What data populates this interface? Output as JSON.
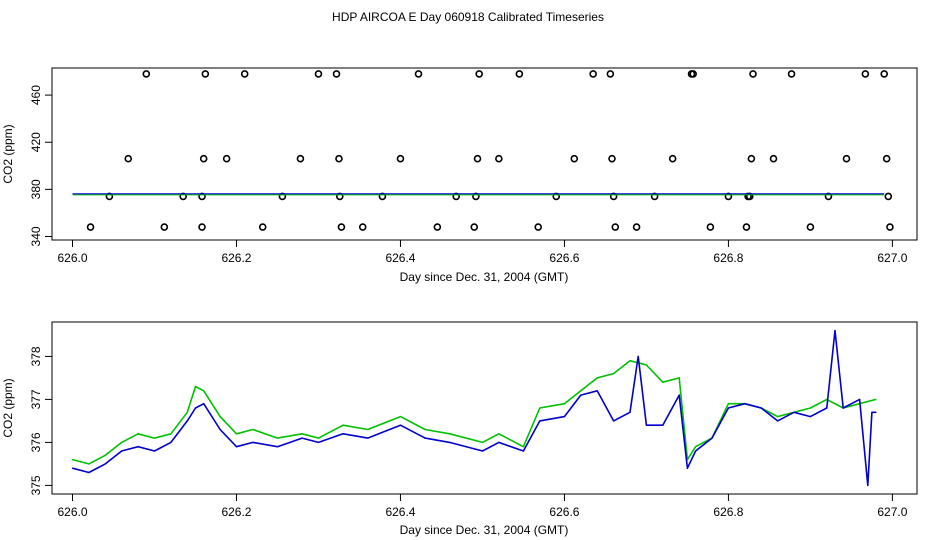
{
  "title": "HDP AIRCOA E  Day 060918  Calibrated Timeseries",
  "chart_data": [
    {
      "type": "scatter",
      "panel": "top",
      "xlabel": "Day since Dec. 31, 2004 (GMT)",
      "ylabel": "CO2 (ppm)",
      "xlim": [
        625.975,
        627.03
      ],
      "ylim": [
        337,
        483
      ],
      "x_ticks": [
        "626.0",
        "626.2",
        "626.4",
        "626.6",
        "626.8",
        "627.0"
      ],
      "y_ticks": [
        "340",
        "380",
        "420",
        "460"
      ],
      "colors": {
        "series_a": "#00c000",
        "series_b": "#0000cc",
        "outliers": "#000000"
      },
      "series": [
        {
          "color": "#000000",
          "marker": "open-circle",
          "points": [
            [
              626.022,
              348
            ],
            [
              626.045,
              374
            ],
            [
              626.068,
              406
            ],
            [
              626.09,
              478
            ],
            [
              626.112,
              348
            ],
            [
              626.135,
              374
            ],
            [
              626.158,
              374
            ],
            [
              626.16,
              406
            ],
            [
              626.162,
              478
            ],
            [
              626.158,
              348
            ],
            [
              626.188,
              406
            ],
            [
              626.21,
              478
            ],
            [
              626.232,
              348
            ],
            [
              626.256,
              374
            ],
            [
              626.278,
              406
            ],
            [
              626.3,
              478
            ],
            [
              626.322,
              478
            ],
            [
              626.325,
              406
            ],
            [
              626.326,
              374
            ],
            [
              626.328,
              348
            ],
            [
              626.354,
              348
            ],
            [
              626.378,
              374
            ],
            [
              626.4,
              406
            ],
            [
              626.422,
              478
            ],
            [
              626.445,
              348
            ],
            [
              626.468,
              374
            ],
            [
              626.49,
              348
            ],
            [
              626.492,
              374
            ],
            [
              626.494,
              406
            ],
            [
              626.496,
              478
            ],
            [
              626.52,
              406
            ],
            [
              626.545,
              478
            ],
            [
              626.568,
              348
            ],
            [
              626.59,
              374
            ],
            [
              626.612,
              406
            ],
            [
              626.635,
              478
            ],
            [
              626.656,
              478
            ],
            [
              626.658,
              406
            ],
            [
              626.66,
              374
            ],
            [
              626.662,
              348
            ],
            [
              626.688,
              348
            ],
            [
              626.71,
              374
            ],
            [
              626.732,
              406
            ],
            [
              626.755,
              478
            ],
            [
              626.757,
              478
            ],
            [
              626.778,
              348
            ],
            [
              626.8,
              374
            ],
            [
              626.822,
              348
            ],
            [
              626.824,
              374
            ],
            [
              626.826,
              374
            ],
            [
              626.828,
              406
            ],
            [
              626.83,
              478
            ],
            [
              626.855,
              406
            ],
            [
              626.877,
              478
            ],
            [
              626.9,
              348
            ],
            [
              626.922,
              374
            ],
            [
              626.944,
              406
            ],
            [
              626.967,
              478
            ],
            [
              626.99,
              478
            ],
            [
              626.993,
              406
            ],
            [
              626.995,
              374
            ],
            [
              626.997,
              348
            ]
          ]
        },
        {
          "color": "#0000cc",
          "line_y": 376.2,
          "x_range": [
            626.0,
            626.99
          ]
        }
      ]
    },
    {
      "type": "line",
      "panel": "bottom",
      "xlabel": "Day since Dec. 31, 2004 (GMT)",
      "ylabel": "CO2 (ppm)",
      "xlim": [
        625.975,
        627.03
      ],
      "ylim": [
        374.8,
        378.8
      ],
      "x_ticks": [
        "626.0",
        "626.2",
        "626.4",
        "626.6",
        "626.8",
        "627.0"
      ],
      "y_ticks": [
        "375",
        "376",
        "377",
        "378"
      ],
      "series": [
        {
          "color": "#00c000",
          "x": [
            626.0,
            626.02,
            626.04,
            626.06,
            626.08,
            626.1,
            626.12,
            626.14,
            626.15,
            626.16,
            626.18,
            626.2,
            626.22,
            626.25,
            626.28,
            626.3,
            626.33,
            626.36,
            626.4,
            626.43,
            626.46,
            626.5,
            626.52,
            626.55,
            626.57,
            626.6,
            626.62,
            626.64,
            626.66,
            626.68,
            626.7,
            626.72,
            626.74,
            626.75,
            626.76,
            626.78,
            626.8,
            626.82,
            626.84,
            626.86,
            626.88,
            626.9,
            626.92,
            626.94,
            626.96,
            626.98
          ],
          "values": [
            375.6,
            375.5,
            375.7,
            376.0,
            376.2,
            376.1,
            376.2,
            376.7,
            377.3,
            377.2,
            376.6,
            376.2,
            376.3,
            376.1,
            376.2,
            376.1,
            376.4,
            376.3,
            376.6,
            376.3,
            376.2,
            376.0,
            376.2,
            375.9,
            376.8,
            376.9,
            377.2,
            377.5,
            377.6,
            377.9,
            377.8,
            377.4,
            377.5,
            375.6,
            375.9,
            376.1,
            376.9,
            376.9,
            376.8,
            376.6,
            376.7,
            376.8,
            377.0,
            376.8,
            376.9,
            377.0
          ]
        },
        {
          "color": "#0000cc",
          "x": [
            626.0,
            626.02,
            626.04,
            626.06,
            626.08,
            626.1,
            626.12,
            626.14,
            626.15,
            626.16,
            626.18,
            626.2,
            626.22,
            626.25,
            626.28,
            626.3,
            626.33,
            626.36,
            626.4,
            626.43,
            626.46,
            626.5,
            626.52,
            626.55,
            626.57,
            626.6,
            626.62,
            626.64,
            626.66,
            626.68,
            626.69,
            626.7,
            626.72,
            626.74,
            626.75,
            626.76,
            626.78,
            626.8,
            626.82,
            626.84,
            626.86,
            626.88,
            626.9,
            626.92,
            626.93,
            626.94,
            626.96,
            626.97,
            626.975,
            626.98
          ],
          "values": [
            375.4,
            375.3,
            375.5,
            375.8,
            375.9,
            375.8,
            376.0,
            376.5,
            376.8,
            376.9,
            376.3,
            375.9,
            376.0,
            375.9,
            376.1,
            376.0,
            376.2,
            376.1,
            376.4,
            376.1,
            376.0,
            375.8,
            376.0,
            375.8,
            376.5,
            376.6,
            377.1,
            377.2,
            376.5,
            376.7,
            378.0,
            376.4,
            376.4,
            377.1,
            375.4,
            375.8,
            376.1,
            376.8,
            376.9,
            376.8,
            376.5,
            376.7,
            376.6,
            376.8,
            378.6,
            376.8,
            377.0,
            375.0,
            376.7,
            376.7
          ]
        }
      ]
    }
  ]
}
